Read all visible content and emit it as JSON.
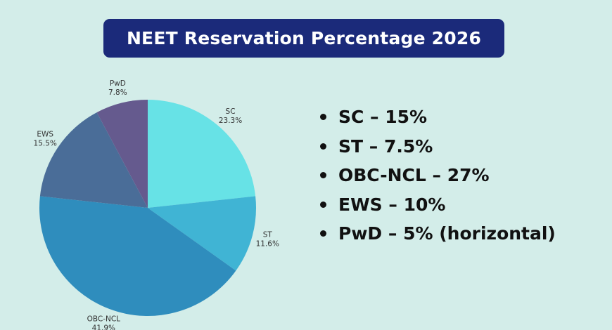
{
  "title": "NEET Reservation Percentage 2026",
  "chart_data": {
    "type": "pie",
    "title": "",
    "start_angle": "12 o'clock, clockwise",
    "slices": [
      {
        "label": "SC",
        "value": 23.3,
        "value_label": "23.3%",
        "color": "#67e2e6"
      },
      {
        "label": "ST",
        "value": 11.6,
        "value_label": "11.6%",
        "color": "#40b4d4"
      },
      {
        "label": "OBC-NCL",
        "value": 41.9,
        "value_label": "41.9%",
        "color": "#2f8dbd"
      },
      {
        "label": "EWS",
        "value": 15.5,
        "value_label": "15.5%",
        "color": "#4a6d98"
      },
      {
        "label": "PwD",
        "value": 7.8,
        "value_label": "7.8%",
        "color": "#655a8e"
      }
    ]
  },
  "bullets": [
    "SC – 15%",
    "ST – 7.5%",
    "OBC-NCL – 27%",
    "EWS – 10%",
    "PwD – 5% (horizontal)"
  ],
  "colors": {
    "background": "#d3ede9",
    "title_bg": "#1b2a7a",
    "title_text": "#ffffff"
  }
}
